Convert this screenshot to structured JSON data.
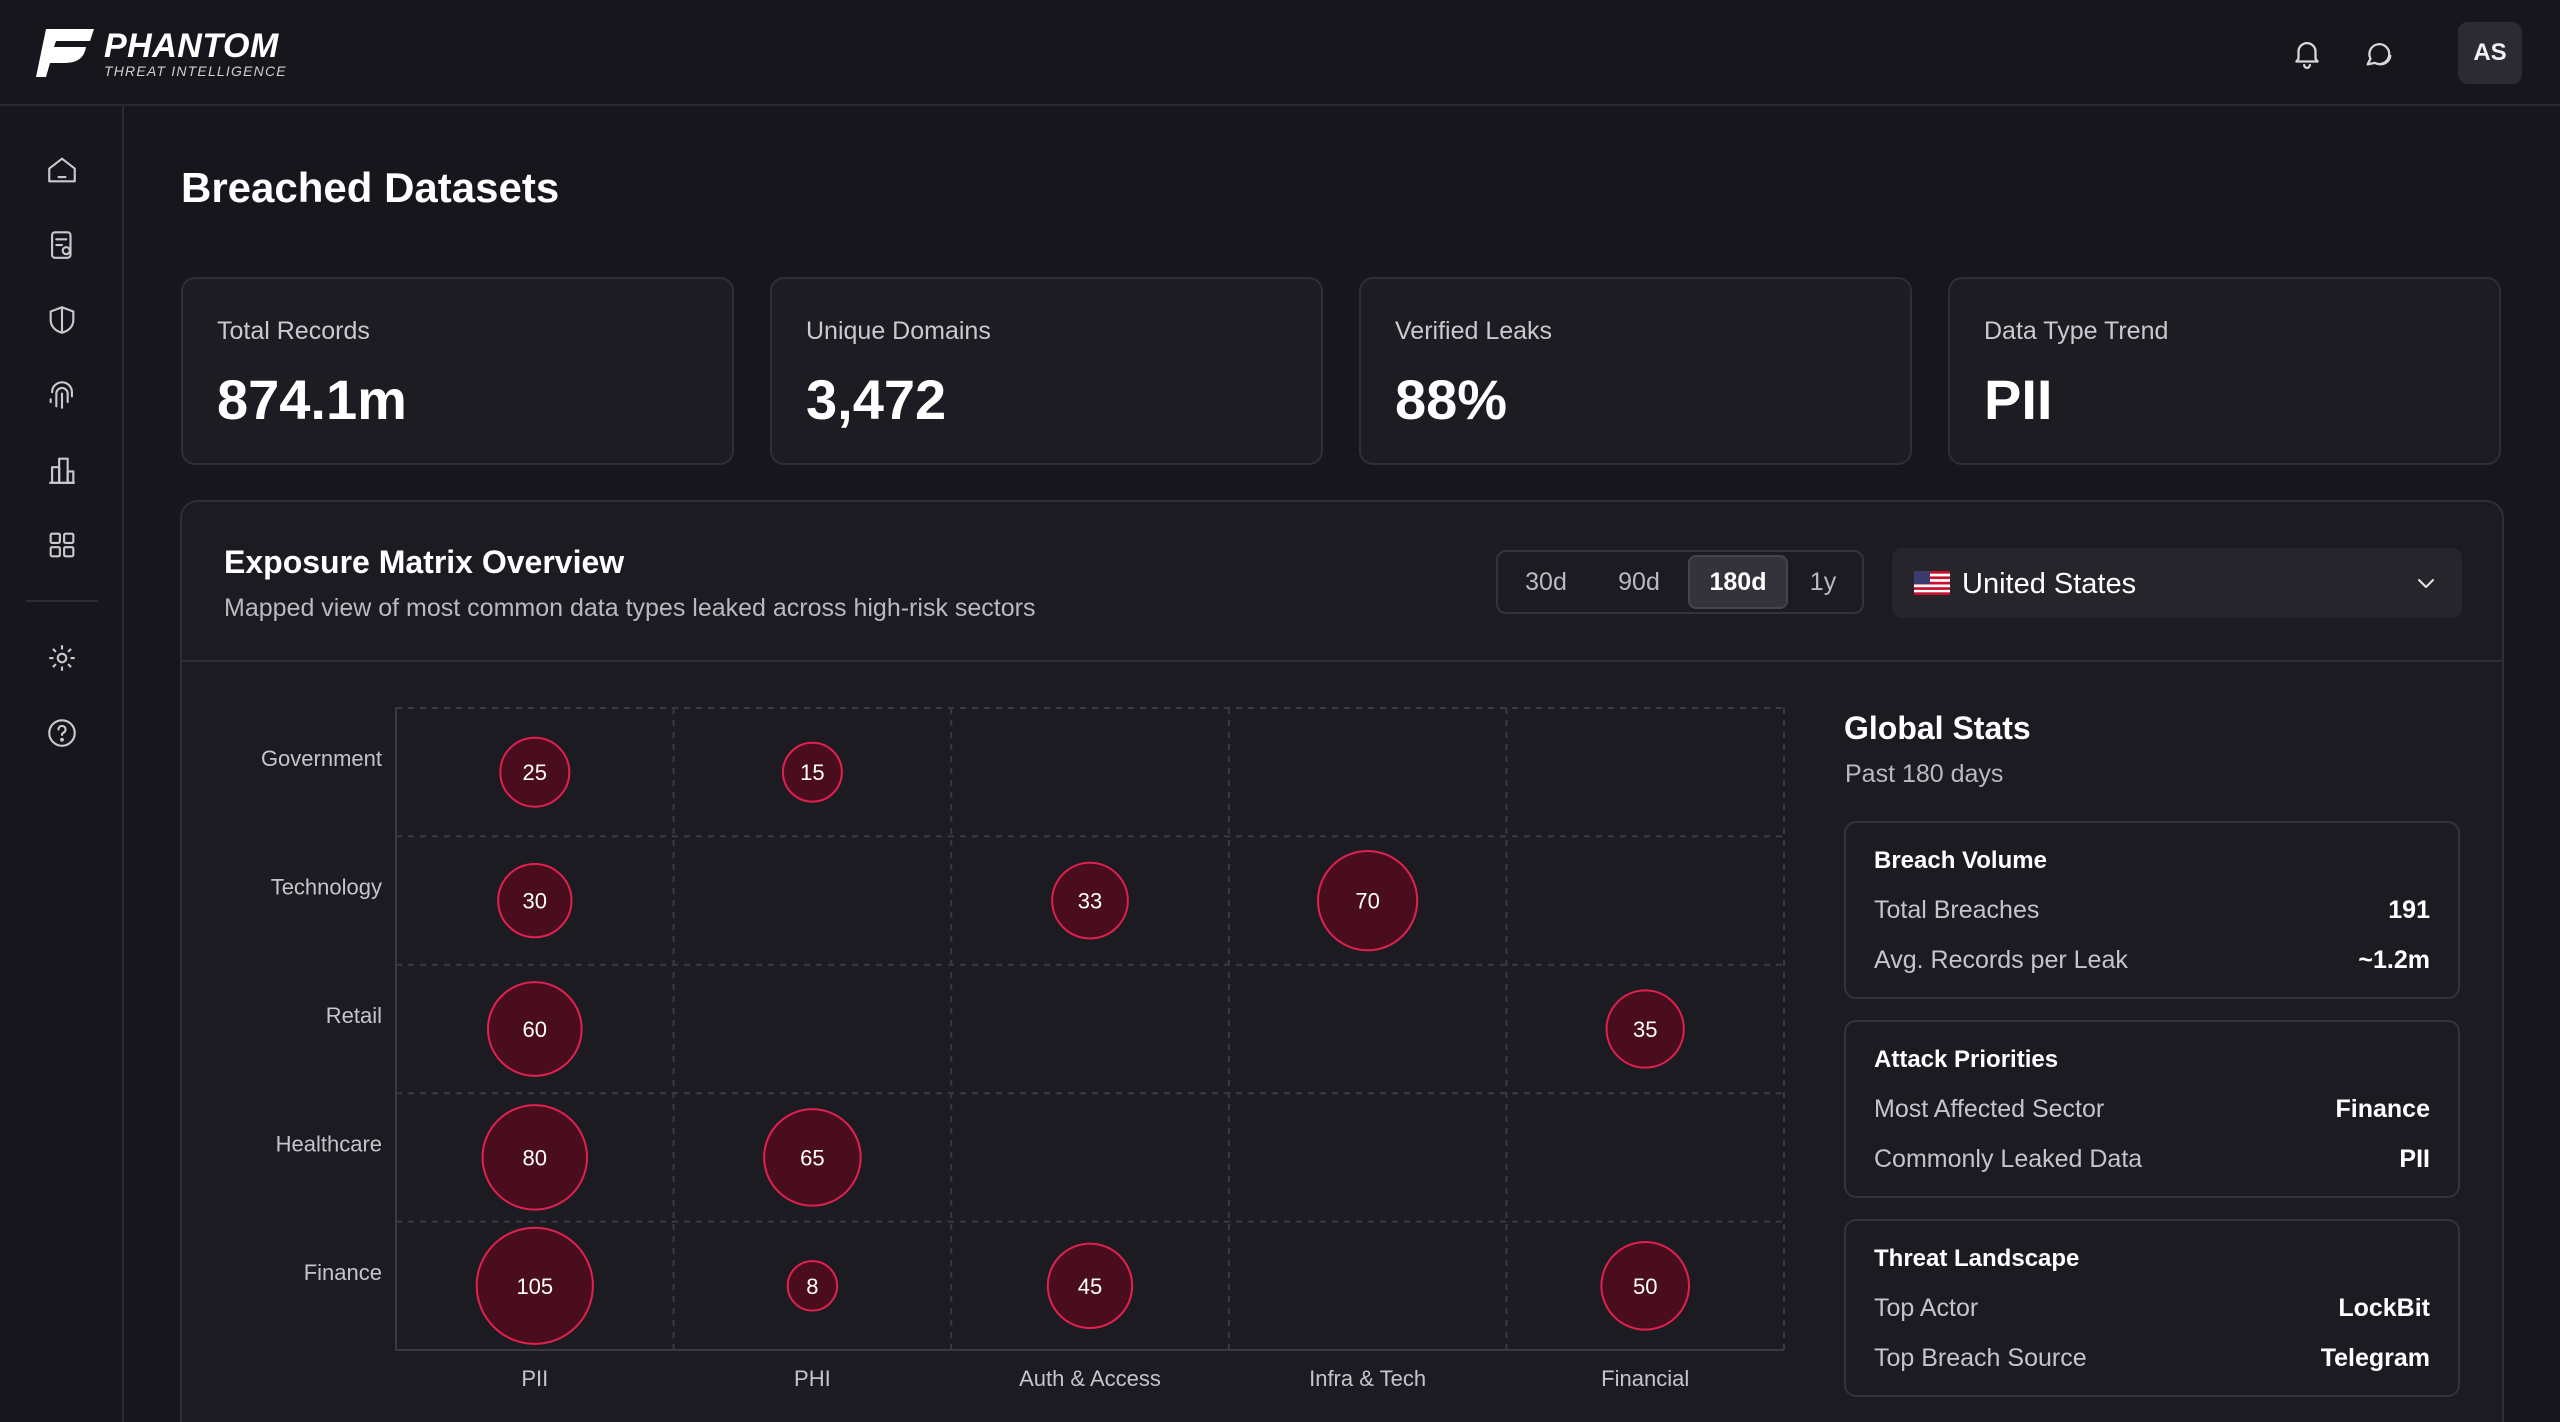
{
  "brand": {
    "name": "PHANTOM",
    "tagline": "THREAT INTELLIGENCE"
  },
  "header": {
    "avatar_initials": "AS",
    "icons": [
      "bell-icon",
      "chat-icon"
    ]
  },
  "sidebar": {
    "items": [
      "home-icon",
      "report-icon",
      "shield-icon",
      "fingerprint-icon",
      "building-icon",
      "grid-icon"
    ],
    "footer_items": [
      "gear-icon",
      "help-icon"
    ]
  },
  "page": {
    "title": "Breached Datasets"
  },
  "stats": [
    {
      "label": "Total Records",
      "value": "874.1m"
    },
    {
      "label": "Unique Domains",
      "value": "3,472"
    },
    {
      "label": "Verified Leaks",
      "value": "88%"
    },
    {
      "label": "Data Type Trend",
      "value": "PII"
    }
  ],
  "panel": {
    "title": "Exposure Matrix Overview",
    "subtitle": "Mapped view of most common data types leaked across high-risk sectors",
    "ranges": [
      "30d",
      "90d",
      "180d",
      "1y"
    ],
    "active_range": "180d",
    "country": "United States"
  },
  "colors": {
    "bubble_fill": "#4a0d1d",
    "bubble_stroke": "#e0214f",
    "grid": "#3a3941",
    "accent": "#e0214f"
  },
  "chart_data": {
    "type": "scatter",
    "title": "",
    "x_categories": [
      "PII",
      "PHI",
      "Auth & Access",
      "Infra & Tech",
      "Financial"
    ],
    "y_categories": [
      "Government",
      "Technology",
      "Retail",
      "Healthcare",
      "Finance"
    ],
    "points": [
      {
        "y": "Government",
        "x": "PII",
        "value": 25
      },
      {
        "y": "Government",
        "x": "PHI",
        "value": 15
      },
      {
        "y": "Technology",
        "x": "PII",
        "value": 30
      },
      {
        "y": "Technology",
        "x": "Auth & Access",
        "value": 33
      },
      {
        "y": "Technology",
        "x": "Infra & Tech",
        "value": 70
      },
      {
        "y": "Retail",
        "x": "PII",
        "value": 60
      },
      {
        "y": "Retail",
        "x": "Financial",
        "value": 35
      },
      {
        "y": "Healthcare",
        "x": "PII",
        "value": 80
      },
      {
        "y": "Healthcare",
        "x": "PHI",
        "value": 65
      },
      {
        "y": "Finance",
        "x": "PII",
        "value": 105
      },
      {
        "y": "Finance",
        "x": "PHI",
        "value": 8
      },
      {
        "y": "Finance",
        "x": "Auth & Access",
        "value": 45
      },
      {
        "y": "Finance",
        "x": "Financial",
        "value": 50
      }
    ],
    "grid": true
  },
  "global_stats": {
    "title": "Global Stats",
    "subtitle": "Past 180 days",
    "cards": [
      {
        "title": "Breach Volume",
        "rows": [
          {
            "key": "Total Breaches",
            "value": "191"
          },
          {
            "key": "Avg. Records per Leak",
            "value": "~1.2m"
          }
        ]
      },
      {
        "title": "Attack Priorities",
        "rows": [
          {
            "key": "Most Affected Sector",
            "value": "Finance"
          },
          {
            "key": "Commonly Leaked Data",
            "value": "PII"
          }
        ]
      },
      {
        "title": "Threat Landscape",
        "rows": [
          {
            "key": "Top Actor",
            "value": "LockBit"
          },
          {
            "key": "Top Breach Source",
            "value": "Telegram"
          }
        ]
      }
    ]
  }
}
